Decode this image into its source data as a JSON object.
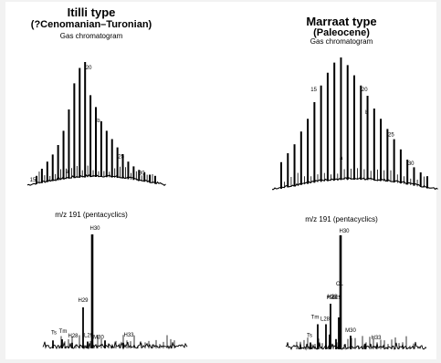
{
  "chart_data": [
    {
      "type": "line",
      "panel": "Itilli type gas chromatogram",
      "title": "Itilli type",
      "subtitle": "(?Cenomanian–Turonian)",
      "label": "Gas chromatogram",
      "peak_labels": [
        "15",
        "a",
        "20",
        "b",
        "25",
        "30"
      ],
      "peaks_relative_height": [
        0.04,
        0.1,
        0.16,
        0.22,
        0.3,
        0.42,
        0.6,
        0.82,
        0.95,
        1.0,
        0.72,
        0.62,
        0.5,
        0.42,
        0.35,
        0.28,
        0.22,
        0.16,
        0.12,
        0.09,
        0.07,
        0.05,
        0.04
      ]
    },
    {
      "type": "line",
      "panel": "Marraat type gas chromatogram",
      "title": "Marraat type",
      "subtitle": "(Paleocene)",
      "label": "Gas chromatogram",
      "peak_labels": [
        "15",
        "a",
        "20",
        "b",
        "25",
        "30"
      ],
      "peaks_relative_height": [
        0.18,
        0.25,
        0.32,
        0.42,
        0.52,
        0.65,
        0.78,
        0.88,
        0.96,
        1.0,
        0.94,
        0.86,
        0.78,
        0.7,
        0.6,
        0.52,
        0.44,
        0.36,
        0.28,
        0.2,
        0.14,
        0.1,
        0.07
      ]
    },
    {
      "type": "line",
      "panel": "Itilli type m/z 191",
      "label": "m/z 191 (pentacyclics)",
      "peak_labels": [
        "Ts",
        "Tm",
        "H28",
        "H29",
        "L29",
        "M30",
        "H30",
        "H33"
      ],
      "peaks_relative_height": [
        0.07,
        0.08,
        0.05,
        0.36,
        0.06,
        0.07,
        1.0,
        0.05
      ]
    },
    {
      "type": "line",
      "panel": "Marraat type m/z 191",
      "label": "m/z 191 (pentacyclics)",
      "peak_labels": [
        "Ts",
        "Tm",
        "L28",
        "H28",
        "H29",
        "L29",
        "OL",
        "M30",
        "H30",
        "H33"
      ],
      "peaks_relative_height": [
        0.06,
        0.22,
        0.22,
        0.13,
        0.4,
        0.09,
        0.28,
        0.12,
        1.0,
        0.05
      ]
    }
  ]
}
